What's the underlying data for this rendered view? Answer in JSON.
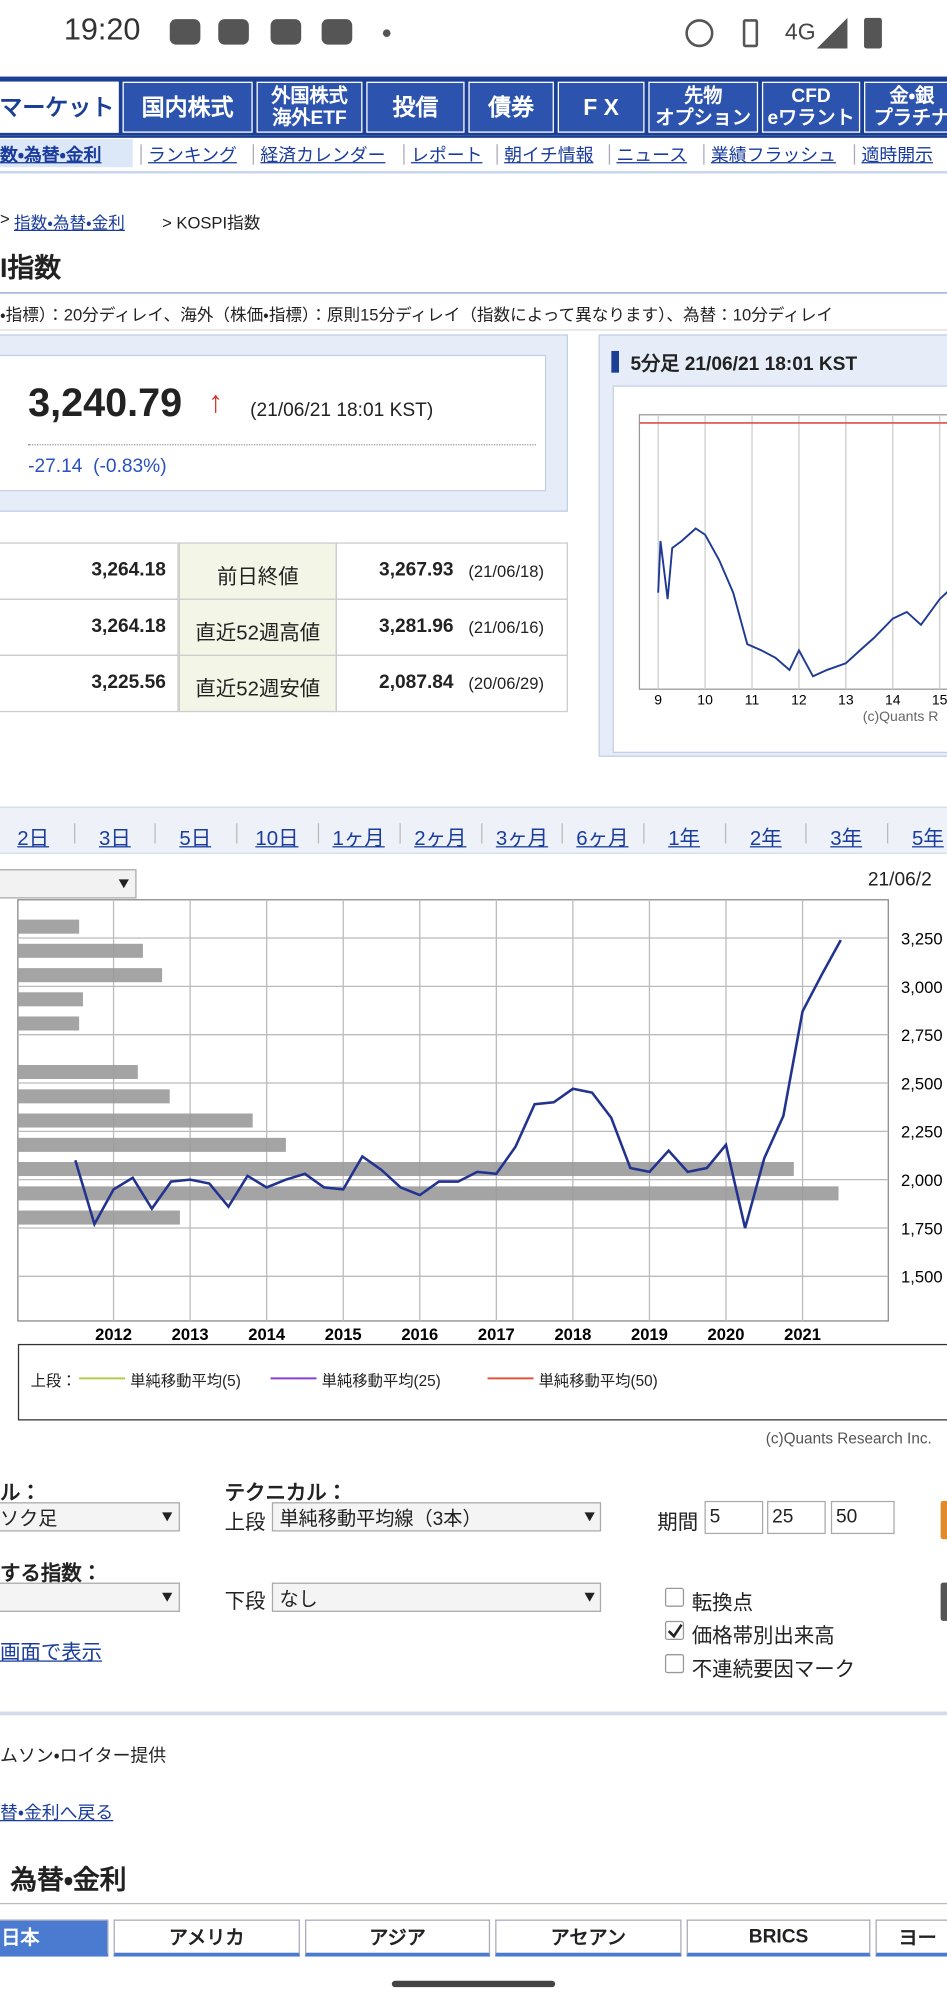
{
  "status_bar": {
    "time": "19:20",
    "network": "4G"
  },
  "nav": {
    "tabs": [
      "マーケット",
      "国内株式",
      "外国株式\n海外ETF",
      "投信",
      "債券",
      "F X",
      "先物\nオプション",
      "CFD\neワラント",
      "金・銀\nプラチナ"
    ]
  },
  "sub_nav": [
    "数・為替・金利",
    "ランキング",
    "経済カレンダー",
    "レポート",
    "朝イチ情報",
    "ニュース",
    "業績フラッシュ",
    "適時開示"
  ],
  "breadcrumb": {
    "prefix": ">",
    "link": "指数・為替・金利",
    "current": "> KOSPI指数"
  },
  "page_title": "I指数",
  "notice": "・指標）：20分ディレイ、海外（株価・指標）：原則15分ディレイ（指数によって異なります）、為替：10分ディレイ",
  "quote": {
    "price": "3,240.79",
    "arrow": "↑",
    "time": "(21/06/21 18:01 KST)",
    "change": "-27.14",
    "change_pct": "(-0.83%)"
  },
  "stats_table": {
    "rows": [
      [
        "3,264.18",
        "前日終値",
        "3,267.93",
        "(21/06/18)"
      ],
      [
        "3,264.18",
        "直近52週高値",
        "3,281.96",
        "(21/06/16)"
      ],
      [
        "3,225.56",
        "直近52週安値",
        "2,087.84",
        "(20/06/29)"
      ]
    ]
  },
  "intraday_chart": {
    "type": "line",
    "title": "5分足 21/06/21 18:01 KST",
    "x": [
      9.0,
      9.05,
      9.2,
      9.3,
      9.5,
      9.8,
      10.0,
      10.3,
      10.6,
      10.9,
      11.2,
      11.5,
      11.8,
      12.0,
      12.3,
      12.6,
      13.0,
      13.3,
      13.6,
      14.0,
      14.3,
      14.6,
      15.0,
      15.3,
      15.5
    ],
    "values": [
      3224.6,
      3237.8,
      3223.0,
      3236.0,
      3237.8,
      3241.0,
      3239.4,
      3232.9,
      3224.6,
      3211.5,
      3209.9,
      3208.0,
      3204.9,
      3209.9,
      3203.3,
      3204.9,
      3206.6,
      3209.9,
      3213.1,
      3218.0,
      3219.7,
      3216.4,
      3223.0,
      3226.3,
      3224.6
    ],
    "color": "#1f3a93",
    "reference_line": 3267.93,
    "reference_color": "#e06666",
    "xlim": [
      8.6,
      15.7
    ],
    "xticks": [
      9,
      10,
      11,
      12,
      13,
      14,
      15
    ],
    "ylim": [
      3200,
      3270
    ],
    "credit": "(c)Quants R"
  },
  "period_tabs": [
    "2日",
    "3日",
    "5日",
    "10日",
    "1ヶ月",
    "2ヶ月",
    "3ヶ月",
    "6ヶ月",
    "1年",
    "2年",
    "3年",
    "5年"
  ],
  "chart_date": "21/06/2",
  "main_chart": {
    "type": "line",
    "x": [
      2011.5,
      2011.75,
      2012,
      2012.25,
      2012.5,
      2012.75,
      2013,
      2013.25,
      2013.5,
      2013.75,
      2014,
      2014.25,
      2014.5,
      2014.75,
      2015,
      2015.25,
      2015.5,
      2015.75,
      2016,
      2016.25,
      2016.5,
      2016.75,
      2017,
      2017.25,
      2017.5,
      2017.75,
      2018,
      2018.25,
      2018.5,
      2018.75,
      2019,
      2019.25,
      2019.5,
      2019.75,
      2020,
      2020.25,
      2020.5,
      2020.75,
      2021,
      2021.25,
      2021.5
    ],
    "values": [
      2100,
      1770,
      1950,
      2010,
      1850,
      1990,
      2000,
      1980,
      1860,
      2020,
      1960,
      2000,
      2030,
      1960,
      1950,
      2120,
      2050,
      1960,
      1920,
      1990,
      1990,
      2040,
      2030,
      2170,
      2390,
      2400,
      2470,
      2450,
      2320,
      2060,
      2040,
      2150,
      2040,
      2060,
      2180,
      1750,
      2110,
      2330,
      2870,
      3060,
      3240
    ],
    "color": "#22338f",
    "xlim": [
      2010.75,
      2022.12
    ],
    "xticks": [
      2012,
      2013,
      2014,
      2015,
      2016,
      2017,
      2018,
      2019,
      2020,
      2021
    ],
    "ylim": [
      1269,
      3448
    ],
    "yticks": [
      {
        "value": 3250,
        "label": "3,250"
      },
      {
        "value": 3000,
        "label": "3,000"
      },
      {
        "value": 2750,
        "label": "2,750"
      },
      {
        "value": 2500,
        "label": "2,500"
      },
      {
        "value": 2250,
        "label": "2,250"
      },
      {
        "value": 2000,
        "label": "2,000"
      },
      {
        "value": 1750,
        "label": "1,750"
      },
      {
        "value": 1500,
        "label": "1,500"
      }
    ],
    "grid": true,
    "volume_profile": {
      "levels": [
        3309,
        3184,
        3058,
        2933,
        2808,
        2557,
        2431,
        2306,
        2180,
        2055,
        1929,
        1804
      ],
      "values": [
        48,
        98,
        113,
        51,
        48,
        94,
        119,
        184,
        210,
        608,
        643,
        127
      ],
      "color": "#9a9a9a"
    },
    "legend": {
      "prefix": "上段：",
      "items": [
        {
          "name": "単純移動平均(5)",
          "color": "#b5c94a"
        },
        {
          "name": "単純移動平均(25)",
          "color": "#8a3fd1"
        },
        {
          "name": "単純移動平均(50)",
          "color": "#e0553a"
        }
      ]
    },
    "credit": "(c)Quants Research Inc."
  },
  "controls": {
    "chart_style_label": "ル：",
    "chart_style": "ソク足",
    "technical_label": "テクニカル：",
    "upper_label": "上段",
    "upper_value": "単純移動平均線（3本）",
    "period_label": "期間",
    "periods": [
      "5",
      "25",
      "50"
    ],
    "compare_label": "する指数：",
    "lower_label": "下段",
    "lower_value": "なし",
    "checkboxes": [
      {
        "label": "転換点",
        "checked": false
      },
      {
        "label": "価格帯別出来高",
        "checked": true
      },
      {
        "label": "不連続要因マーク",
        "checked": false
      }
    ],
    "fullscreen_link": "画面で表示"
  },
  "provider": "ムソン・ロイター提供",
  "back_link": "替・金利へ戻る",
  "section_title": "為替・金利",
  "region_tabs": [
    "日本",
    "アメリカ",
    "アジア",
    "アセアン",
    "BRICS",
    "ヨー"
  ]
}
